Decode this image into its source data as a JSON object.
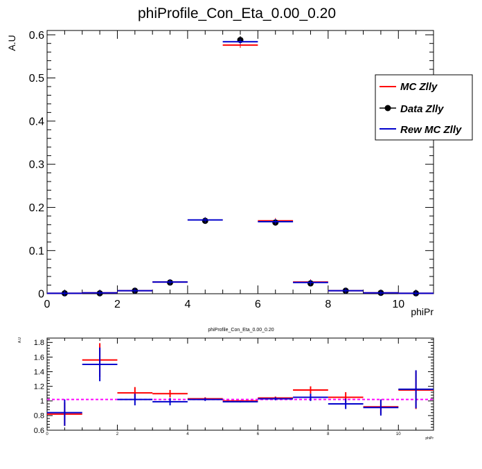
{
  "chart_data": [
    {
      "type": "scatter",
      "title": "phiProfile_Con_Eta_0.00_0.20",
      "xlabel": "phiPr",
      "ylabel": "A.U",
      "xlim": [
        0,
        11
      ],
      "ylim": [
        0,
        0.61
      ],
      "xticks": [
        0,
        2,
        4,
        6,
        8,
        10
      ],
      "yticks": [
        0,
        0.1,
        0.2,
        0.3,
        0.4,
        0.5,
        0.6
      ],
      "xtick_labels": [
        "0",
        "2",
        "4",
        "6",
        "8",
        "10"
      ],
      "ytick_labels": [
        "0",
        "0.1",
        "0.2",
        "0.3",
        "0.4",
        "0.5",
        "0.6"
      ],
      "legend": {
        "position": "right",
        "entries": [
          {
            "label": "MC Zlly",
            "color": "#ff0000",
            "style": "line"
          },
          {
            "label": "Data Zlly",
            "color": "#000000",
            "style": "marker"
          },
          {
            "label": "Rew MC Zlly",
            "color": "#0000cc",
            "style": "line"
          }
        ]
      },
      "bin_width": 1,
      "series": [
        {
          "name": "MC Zlly",
          "color": "#ff0000",
          "x": [
            0.5,
            1.5,
            2.5,
            3.5,
            4.5,
            5.5,
            6.5,
            7.5,
            8.5,
            9.5,
            10.5
          ],
          "values": [
            0.001,
            0.002,
            0.007,
            0.027,
            0.171,
            0.576,
            0.169,
            0.027,
            0.007,
            0.002,
            0.001
          ]
        },
        {
          "name": "Data Zlly",
          "color": "#000000",
          "x": [
            0.5,
            1.5,
            2.5,
            3.5,
            4.5,
            5.5,
            6.5,
            7.5,
            8.5,
            9.5,
            10.5
          ],
          "values": [
            0.001,
            0.001,
            0.007,
            0.026,
            0.169,
            0.588,
            0.165,
            0.024,
            0.007,
            0.002,
            0.001
          ],
          "errors": [
            0.0005,
            0.0005,
            0.001,
            0.002,
            0.003,
            0.009,
            0.003,
            0.002,
            0.001,
            0.0005,
            0.0005
          ]
        },
        {
          "name": "Rew MC Zlly",
          "color": "#0000cc",
          "x": [
            0.5,
            1.5,
            2.5,
            3.5,
            4.5,
            5.5,
            6.5,
            7.5,
            8.5,
            9.5,
            10.5
          ],
          "values": [
            0.001,
            0.002,
            0.007,
            0.027,
            0.171,
            0.584,
            0.167,
            0.026,
            0.007,
            0.002,
            0.001
          ]
        }
      ]
    },
    {
      "type": "scatter",
      "title": "phiProfile_Con_Eta_0.00_0.20",
      "xlabel": "phiPr",
      "ylabel": "A.U",
      "xlim": [
        0,
        11
      ],
      "ylim": [
        0.6,
        1.86
      ],
      "xticks": [
        0,
        2,
        4,
        6,
        8,
        10
      ],
      "yticks": [
        0.6,
        0.8,
        1,
        1.2,
        1.4,
        1.6,
        1.8
      ],
      "xtick_labels": [
        "0",
        "2",
        "4",
        "6",
        "8",
        "10"
      ],
      "ytick_labels": [
        "0.6",
        "0.8",
        "1",
        "1.2",
        "1.4",
        "1.6",
        "1.8"
      ],
      "reference_line": {
        "y": 1.02,
        "color": "#ff00ff",
        "style": "dashed"
      },
      "bin_width": 1,
      "series": [
        {
          "name": "MC Zlly",
          "color": "#ff0000",
          "x": [
            0.5,
            1.5,
            2.5,
            3.5,
            4.5,
            5.5,
            6.5,
            7.5,
            8.5,
            9.5,
            10.5
          ],
          "values": [
            0.82,
            1.56,
            1.11,
            1.1,
            1.03,
            1.0,
            1.04,
            1.15,
            1.05,
            0.92,
            1.15
          ],
          "errors": [
            0.16,
            0.23,
            0.08,
            0.05,
            0.02,
            0.01,
            0.02,
            0.05,
            0.07,
            0.1,
            0.26
          ]
        },
        {
          "name": "Rew MC Zlly",
          "color": "#0000cc",
          "x": [
            0.5,
            1.5,
            2.5,
            3.5,
            4.5,
            5.5,
            6.5,
            7.5,
            8.5,
            9.5,
            10.5
          ],
          "values": [
            0.84,
            1.5,
            1.02,
            0.99,
            1.02,
            0.99,
            1.03,
            1.05,
            0.96,
            0.91,
            1.16
          ],
          "errors": [
            0.18,
            0.23,
            0.08,
            0.05,
            0.02,
            0.01,
            0.02,
            0.05,
            0.07,
            0.11,
            0.26
          ]
        }
      ]
    }
  ]
}
